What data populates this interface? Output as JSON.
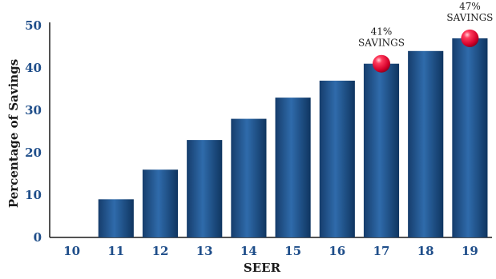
{
  "chart_data": {
    "type": "bar",
    "title": "",
    "xlabel": "SEER",
    "ylabel": "Percentage of Savings",
    "ylim": [
      0,
      50
    ],
    "yticks": [
      0,
      10,
      20,
      30,
      40,
      50
    ],
    "categories": [
      "10",
      "11",
      "12",
      "13",
      "14",
      "15",
      "16",
      "17",
      "18",
      "19"
    ],
    "values": [
      0,
      9,
      16,
      23,
      28,
      33,
      37,
      41,
      44,
      47
    ],
    "grid": false,
    "bar_color": "#1b4a80",
    "highlight_color": "#e0103a",
    "annotations": [
      {
        "category": "17",
        "value": 41,
        "line1": "41%",
        "line2": "SAVINGS"
      },
      {
        "category": "19",
        "value": 47,
        "line1": "47%",
        "line2": "SAVINGS"
      }
    ]
  }
}
